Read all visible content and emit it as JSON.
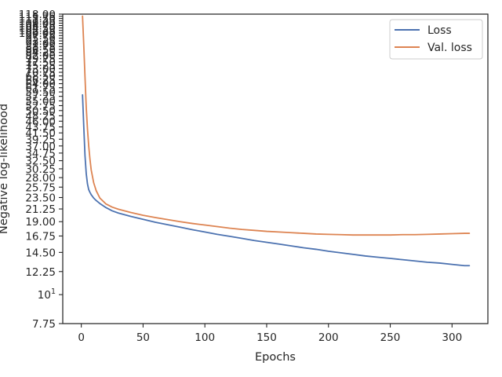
{
  "chart_data": {
    "type": "line",
    "title": "",
    "xlabel": "Epochs",
    "ylabel": "Negative log-likelihood",
    "xlim": [
      -15,
      329
    ],
    "ylim": [
      7.75,
      118.0
    ],
    "yscale": "log",
    "grid": false,
    "legend": "top-right",
    "xticks": [
      0,
      50,
      100,
      150,
      200,
      250,
      300
    ],
    "yticks": [
      7.75,
      12.25,
      14.5,
      16.75,
      19.0,
      21.25,
      23.5,
      25.75,
      28.0,
      30.25,
      32.5,
      34.75,
      37.0,
      39.25,
      41.5,
      43.75,
      46.0,
      48.25,
      50.5,
      52.75,
      55.0,
      57.25,
      59.5,
      61.75,
      64.0,
      66.25,
      68.5,
      70.75,
      73.0,
      75.25,
      77.5,
      79.75,
      82.0,
      84.25,
      86.5,
      88.75,
      91.0,
      93.25,
      95.5,
      97.75,
      100.0,
      102.25,
      104.5,
      106.75,
      109.0,
      111.25,
      113.5,
      115.75,
      118.0
    ],
    "ytick_labels": [
      "7.75",
      "12.25",
      "14.50",
      "16.75",
      "19.00",
      "21.25",
      "23.50",
      "25.75",
      "28.00",
      "30.25",
      "32.50",
      "34.75",
      "37.00",
      "39.25",
      "41.50",
      "43.75",
      "46.00",
      "48.25",
      "50.50",
      "52.75",
      "55.00",
      "57.25",
      "59.50",
      "61.75",
      "64.00",
      "66.25",
      "68.50",
      "70.75",
      "73.00",
      "75.25",
      "77.50",
      "79.75",
      "82.00",
      "84.25",
      "86.50",
      "88.75",
      "91.00",
      "93.25",
      "95.50",
      "97.75",
      "100.00",
      "102.25",
      "104.50",
      "106.75",
      "109.00",
      "111.25",
      "113.50",
      "115.75",
      "118.00"
    ],
    "ytick_special": {
      "value": 10,
      "base": "10",
      "exponent": "1"
    },
    "series": [
      {
        "name": "Loss",
        "color": "#4c72b0",
        "x": [
          1,
          2,
          3,
          4,
          5,
          6,
          7,
          8,
          10,
          12,
          15,
          20,
          25,
          30,
          40,
          50,
          60,
          70,
          80,
          90,
          100,
          110,
          120,
          130,
          140,
          150,
          160,
          170,
          180,
          190,
          200,
          210,
          220,
          230,
          240,
          250,
          260,
          270,
          280,
          290,
          300,
          310,
          314
        ],
        "y": [
          58.0,
          44.0,
          34.0,
          29.0,
          26.5,
          25.2,
          24.6,
          24.1,
          23.4,
          22.9,
          22.3,
          21.5,
          20.9,
          20.5,
          19.9,
          19.4,
          18.9,
          18.5,
          18.1,
          17.7,
          17.35,
          17.0,
          16.7,
          16.4,
          16.1,
          15.85,
          15.6,
          15.35,
          15.1,
          14.9,
          14.65,
          14.45,
          14.25,
          14.05,
          13.9,
          13.75,
          13.6,
          13.45,
          13.3,
          13.2,
          13.05,
          12.9,
          12.9
        ]
      },
      {
        "name": "Val. loss",
        "color": "#dd8452",
        "x": [
          1,
          2,
          3,
          4,
          5,
          6,
          7,
          8,
          10,
          12,
          15,
          20,
          25,
          30,
          40,
          50,
          60,
          70,
          80,
          90,
          100,
          110,
          120,
          130,
          140,
          150,
          160,
          170,
          180,
          190,
          200,
          210,
          220,
          230,
          240,
          250,
          260,
          270,
          280,
          290,
          300,
          310,
          314
        ],
        "y": [
          116.0,
          90.0,
          68.0,
          52.0,
          43.0,
          37.0,
          33.0,
          30.0,
          26.8,
          25.0,
          23.4,
          22.2,
          21.6,
          21.2,
          20.6,
          20.1,
          19.7,
          19.35,
          19.0,
          18.7,
          18.45,
          18.2,
          17.95,
          17.75,
          17.6,
          17.45,
          17.35,
          17.25,
          17.15,
          17.05,
          17.0,
          16.95,
          16.9,
          16.9,
          16.9,
          16.9,
          16.95,
          16.95,
          17.0,
          17.05,
          17.1,
          17.15,
          17.15
        ]
      }
    ]
  }
}
